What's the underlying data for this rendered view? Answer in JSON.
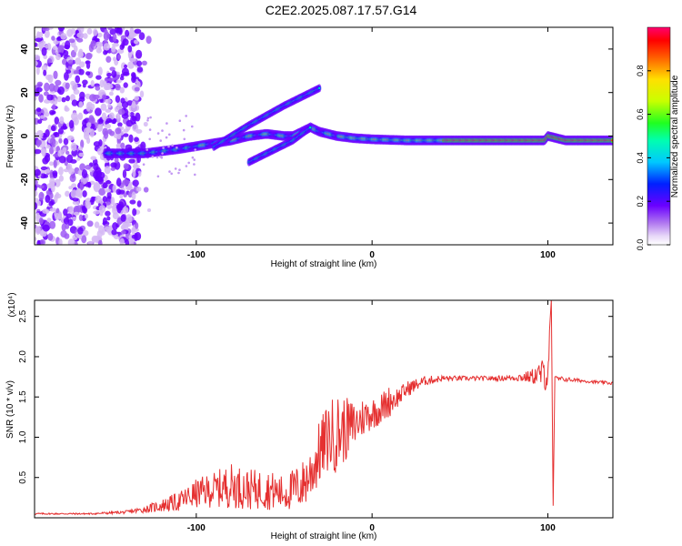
{
  "title": "C2E2.2025.087.17.57.G14",
  "colors": {
    "snr_line": "#e53030",
    "frame": "#000000"
  },
  "chart_data": [
    {
      "type": "heatmap",
      "xlabel": "Height of straight line (km)",
      "ylabel": "Frequency (Hz)",
      "xlim": [
        -192,
        137
      ],
      "ylim": [
        -50,
        50
      ],
      "xticks": [
        -100,
        0,
        100
      ],
      "yticks": [
        -40,
        -20,
        0,
        20,
        40
      ],
      "colorbar": {
        "label": "Normalized spectral amplitude",
        "ticks": [
          "0.0",
          "0.2",
          "0.4",
          "0.6",
          "0.8"
        ],
        "range": [
          0,
          1
        ]
      },
      "features": {
        "noise_region_x": [
          -192,
          -132
        ],
        "main_track": [
          [
            -150,
            -8
          ],
          [
            -130,
            -8
          ],
          [
            -110,
            -6
          ],
          [
            -95,
            -4
          ],
          [
            -80,
            -2
          ],
          [
            -70,
            0
          ],
          [
            -60,
            1
          ],
          [
            -50,
            0
          ],
          [
            -45,
            0
          ],
          [
            -40,
            2
          ],
          [
            -35,
            4
          ],
          [
            -30,
            2
          ],
          [
            -20,
            0
          ],
          [
            -10,
            -1
          ],
          [
            0,
            -1.5
          ],
          [
            20,
            -2
          ],
          [
            40,
            -2
          ],
          [
            60,
            -2
          ],
          [
            80,
            -2
          ],
          [
            98,
            -2
          ],
          [
            100,
            0
          ],
          [
            110,
            -2
          ],
          [
            137,
            -2
          ]
        ],
        "upper_branch": [
          [
            -90,
            -5
          ],
          [
            -70,
            5
          ],
          [
            -50,
            14
          ],
          [
            -40,
            18
          ],
          [
            -30,
            22
          ]
        ],
        "lower_branch": [
          [
            -70,
            -12
          ],
          [
            -55,
            -6
          ],
          [
            -45,
            -2
          ],
          [
            -35,
            4
          ]
        ]
      }
    },
    {
      "type": "line",
      "xlabel": "Height of straight line (km)",
      "ylabel": "SNR (10 * v/v)",
      "y_scale_label": "(x10⁴)",
      "xlim": [
        -192,
        137
      ],
      "ylim": [
        0,
        2.7
      ],
      "xticks": [
        -100,
        0,
        100
      ],
      "yticks": [
        0.5,
        1.0,
        1.5,
        2.0,
        2.5
      ],
      "ytick_labels": [
        "0.5",
        "1.0",
        "1.5",
        "2.0",
        "2.5"
      ],
      "series": [
        {
          "x": [
            -192,
            -160,
            -140,
            -130,
            -120,
            -110,
            -100,
            -90,
            -80,
            -70,
            -60,
            -50,
            -40,
            -35,
            -30,
            -25,
            -20,
            -15,
            -10,
            -5,
            0,
            5,
            10,
            15,
            20,
            25,
            30,
            40,
            50,
            60,
            70,
            80,
            90,
            95,
            100,
            102,
            103,
            104,
            105,
            110,
            120,
            130,
            137
          ],
          "y": [
            0.05,
            0.05,
            0.07,
            0.1,
            0.15,
            0.2,
            0.3,
            0.35,
            0.4,
            0.35,
            0.35,
            0.3,
            0.4,
            0.55,
            0.8,
            1.0,
            1.05,
            1.1,
            1.15,
            1.25,
            1.3,
            1.35,
            1.45,
            1.5,
            1.6,
            1.65,
            1.7,
            1.73,
            1.73,
            1.73,
            1.73,
            1.74,
            1.75,
            1.78,
            1.8,
            2.7,
            0.15,
            1.75,
            1.72,
            1.72,
            1.7,
            1.68,
            1.67
          ],
          "noise": [
            0.01,
            0.01,
            0.02,
            0.04,
            0.08,
            0.12,
            0.18,
            0.22,
            0.28,
            0.25,
            0.25,
            0.22,
            0.3,
            0.35,
            0.4,
            0.45,
            0.5,
            0.4,
            0.3,
            0.25,
            0.2,
            0.2,
            0.2,
            0.12,
            0.1,
            0.08,
            0.06,
            0.04,
            0.03,
            0.03,
            0.03,
            0.04,
            0.08,
            0.15,
            0.25,
            0,
            0,
            0.08,
            0.04,
            0.03,
            0.02,
            0.02,
            0.02
          ]
        }
      ]
    }
  ]
}
